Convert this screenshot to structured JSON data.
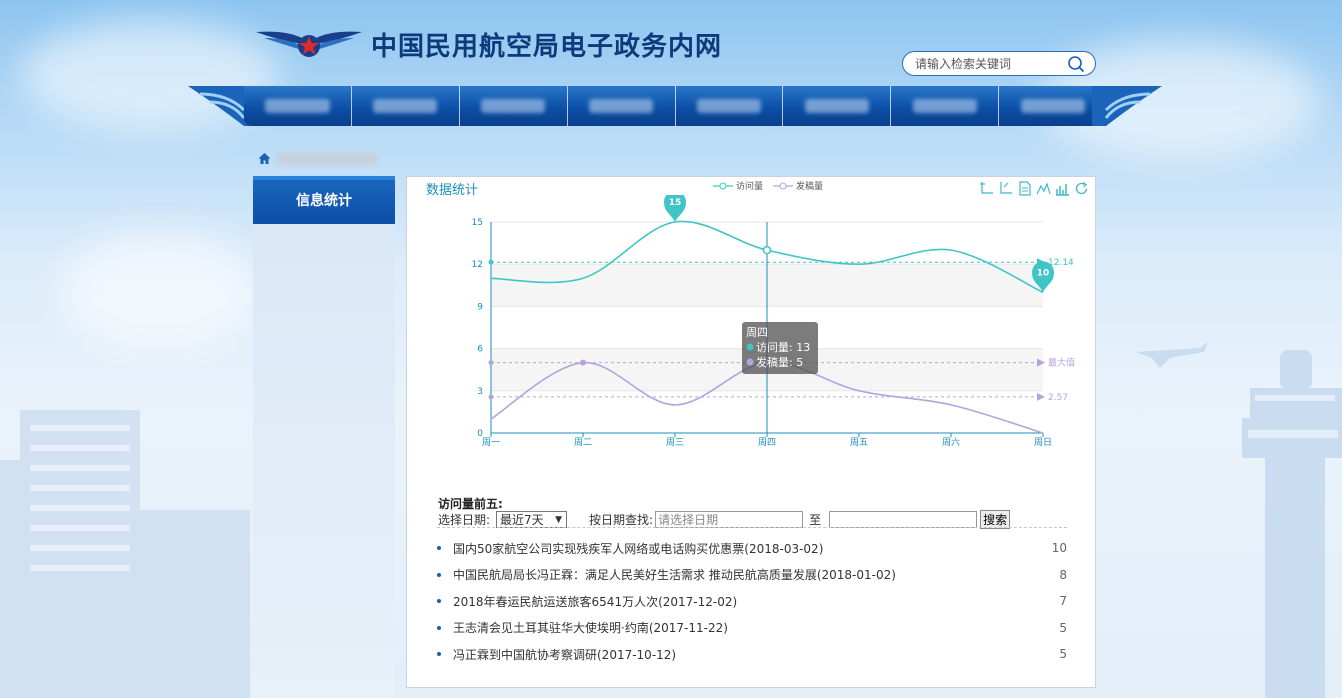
{
  "header": {
    "site_title": "中国民用航空局电子政务内网",
    "search_placeholder": "请输入检索关键词"
  },
  "nav": {
    "items": [
      "",
      "",
      "",
      "",
      "",
      "",
      "",
      ""
    ]
  },
  "sidebar": {
    "active_item": "信息统计"
  },
  "panel": {
    "title": "数据统计"
  },
  "chart_data": {
    "type": "line",
    "categories": [
      "周一",
      "周二",
      "周三",
      "周四",
      "周五",
      "周六",
      "周日"
    ],
    "series": [
      {
        "name": "访问量",
        "values": [
          11,
          11,
          15,
          13,
          12,
          13,
          10
        ],
        "color": "#3fc5c5"
      },
      {
        "name": "发稿量",
        "values": [
          1,
          5,
          2,
          5,
          3,
          2,
          0
        ],
        "color": "#b8a2de"
      }
    ],
    "ylim": [
      0,
      15
    ],
    "yticks": [
      0,
      3,
      6,
      9,
      12,
      15
    ],
    "legend": "top-center",
    "mark_points": [
      {
        "series": "访问量",
        "label": "15",
        "category": "周三",
        "value": 15
      },
      {
        "series": "访问量",
        "label": "10",
        "category": "周日",
        "value": 10
      }
    ],
    "mark_lines": [
      {
        "series": "访问量",
        "label": "12.14",
        "value": 12.14
      },
      {
        "series": "发稿量",
        "label": "最大值",
        "value": 5
      },
      {
        "series": "发稿量",
        "label": "2.57",
        "value": 2.57
      }
    ],
    "tooltip": {
      "category": "周四",
      "rows": [
        "访问量: 13",
        "发稿量: 5"
      ]
    }
  },
  "top5": {
    "title": "访问量前五:",
    "select_date_label": "选择日期:",
    "select_value": "最近7天",
    "search_by_date_label": "按日期查找:",
    "date_from_placeholder": "请选择日期",
    "to_label": "至",
    "search_button": "搜索",
    "items": [
      {
        "title": "国内50家航空公司实现残疾军人网络或电话购买优惠票(2018-03-02)",
        "count": "10"
      },
      {
        "title": "中国民航局局长冯正霖：满足人民美好生活需求 推动民航高质量发展(2018-01-02)",
        "count": "8"
      },
      {
        "title": "2018年春运民航运送旅客6541万人次(2017-12-02)",
        "count": "7"
      },
      {
        "title": "王志清会见土耳其驻华大使埃明·约南(2017-11-22)",
        "count": "5"
      },
      {
        "title": "冯正霖到中国航协考察调研(2017-10-12)",
        "count": "5"
      }
    ]
  },
  "colors": {
    "primary": "#0b4fa6",
    "accent": "#1a8fbf",
    "visits": "#3fc5c5",
    "posts": "#b8a2de"
  }
}
